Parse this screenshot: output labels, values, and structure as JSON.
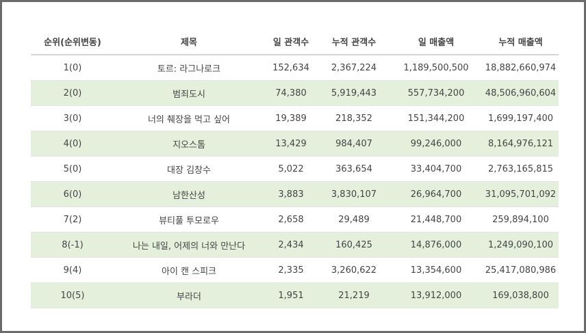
{
  "table": {
    "headers": [
      "순위(순위변동)",
      "제목",
      "일 관객수",
      "누적 관객수",
      "일 매출액",
      "누적 매출액"
    ],
    "rows": [
      [
        "1(0)",
        "토르: 라그나로크",
        "152,634",
        "2,367,224",
        "1,189,500,500",
        "18,882,660,974"
      ],
      [
        "2(0)",
        "범죄도시",
        "74,380",
        "5,919,443",
        "557,734,200",
        "48,506,960,604"
      ],
      [
        "3(0)",
        "너의 췌장을 먹고 싶어",
        "19,389",
        "218,352",
        "151,344,200",
        "1,699,197,400"
      ],
      [
        "4(0)",
        "지오스톰",
        "13,429",
        "984,407",
        "99,246,000",
        "8,164,976,121"
      ],
      [
        "5(0)",
        "대장 김창수",
        "5,022",
        "363,654",
        "33,404,700",
        "2,763,165,815"
      ],
      [
        "6(0)",
        "남한산성",
        "3,883",
        "3,830,107",
        "26,964,700",
        "31,095,701,092"
      ],
      [
        "7(2)",
        "뷰티풀 투모로우",
        "2,658",
        "29,489",
        "21,448,700",
        "259,894,100"
      ],
      [
        "8(-1)",
        "나는 내일, 어제의 너와 만난다",
        "2,434",
        "160,425",
        "14,876,000",
        "1,249,090,100"
      ],
      [
        "9(4)",
        "아이 캔 스피크",
        "2,335",
        "3,260,622",
        "13,354,600",
        "25,417,080,986"
      ],
      [
        "10(5)",
        "부라더",
        "1,951",
        "21,219",
        "13,912,000",
        "169,038,800"
      ]
    ]
  },
  "colors": {
    "stripe_row": "#e4f0dc",
    "frame_border": "#6b6b6b",
    "text": "#444444"
  }
}
